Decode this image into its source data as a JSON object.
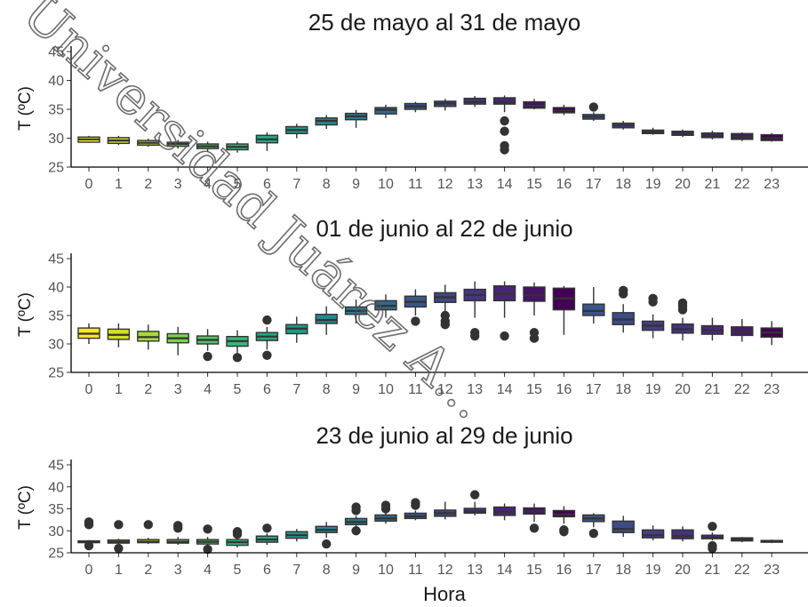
{
  "chart_data": [
    {
      "type": "box",
      "title": "25 de mayo al 31 de mayo",
      "ylabel": "T (ºC)",
      "xlabel": "",
      "ylim": [
        25,
        45
      ],
      "yticks": [
        25,
        30,
        35,
        40,
        45
      ],
      "categories": [
        "0",
        "1",
        "2",
        "3",
        "4",
        "5",
        "6",
        "7",
        "8",
        "9",
        "10",
        "11",
        "12",
        "13",
        "14",
        "15",
        "16",
        "17",
        "18",
        "19",
        "20",
        "21",
        "22",
        "23"
      ],
      "boxes": [
        {
          "min": 29.2,
          "q1": 29.3,
          "median": 29.8,
          "q3": 30.2,
          "max": 30.4,
          "outliers": []
        },
        {
          "min": 28.8,
          "q1": 29.1,
          "median": 29.6,
          "q3": 30.1,
          "max": 30.4,
          "outliers": []
        },
        {
          "min": 28.5,
          "q1": 28.8,
          "median": 29.2,
          "q3": 29.6,
          "max": 29.9,
          "outliers": []
        },
        {
          "min": 28.2,
          "q1": 28.6,
          "median": 29.0,
          "q3": 29.3,
          "max": 29.7,
          "outliers": []
        },
        {
          "min": 27.6,
          "q1": 28.2,
          "median": 28.6,
          "q3": 29.0,
          "max": 29.4,
          "outliers": []
        },
        {
          "min": 27.5,
          "q1": 28.0,
          "median": 28.5,
          "q3": 29.0,
          "max": 29.4,
          "outliers": []
        },
        {
          "min": 27.8,
          "q1": 29.2,
          "median": 29.8,
          "q3": 30.5,
          "max": 31.0,
          "outliers": []
        },
        {
          "min": 30.0,
          "q1": 30.8,
          "median": 31.4,
          "q3": 32.0,
          "max": 32.5,
          "outliers": []
        },
        {
          "min": 31.6,
          "q1": 32.3,
          "median": 33.0,
          "q3": 33.5,
          "max": 34.0,
          "outliers": []
        },
        {
          "min": 31.8,
          "q1": 33.2,
          "median": 33.8,
          "q3": 34.3,
          "max": 34.9,
          "outliers": []
        },
        {
          "min": 33.5,
          "q1": 34.2,
          "median": 34.9,
          "q3": 35.3,
          "max": 35.8,
          "outliers": []
        },
        {
          "min": 34.5,
          "q1": 35.0,
          "median": 35.5,
          "q3": 36.0,
          "max": 36.3,
          "outliers": []
        },
        {
          "min": 34.8,
          "q1": 35.5,
          "median": 36.0,
          "q3": 36.4,
          "max": 36.8,
          "outliers": []
        },
        {
          "min": 35.4,
          "q1": 35.9,
          "median": 36.3,
          "q3": 36.9,
          "max": 37.3,
          "outliers": []
        },
        {
          "min": 34.5,
          "q1": 35.9,
          "median": 36.2,
          "q3": 37.0,
          "max": 37.4,
          "outliers": [
            33.0,
            31.2,
            28.7,
            28.0
          ]
        },
        {
          "min": 35.0,
          "q1": 35.2,
          "median": 35.6,
          "q3": 36.3,
          "max": 36.8,
          "outliers": []
        },
        {
          "min": 34.0,
          "q1": 34.4,
          "median": 34.8,
          "q3": 35.3,
          "max": 35.8,
          "outliers": []
        },
        {
          "min": 33.0,
          "q1": 33.3,
          "median": 33.7,
          "q3": 34.1,
          "max": 34.5,
          "outliers": [
            35.4
          ]
        },
        {
          "min": 31.5,
          "q1": 31.8,
          "median": 32.2,
          "q3": 32.6,
          "max": 33.0,
          "outliers": []
        },
        {
          "min": 30.6,
          "q1": 30.8,
          "median": 31.1,
          "q3": 31.4,
          "max": 31.8,
          "outliers": []
        },
        {
          "min": 30.2,
          "q1": 30.5,
          "median": 30.8,
          "q3": 31.2,
          "max": 31.5,
          "outliers": []
        },
        {
          "min": 29.8,
          "q1": 30.1,
          "median": 30.4,
          "q3": 30.9,
          "max": 31.3,
          "outliers": []
        },
        {
          "min": 29.5,
          "q1": 29.8,
          "median": 30.2,
          "q3": 30.8,
          "max": 31.0,
          "outliers": []
        },
        {
          "min": 29.4,
          "q1": 29.6,
          "median": 30.0,
          "q3": 30.6,
          "max": 30.9,
          "outliers": []
        }
      ]
    },
    {
      "type": "box",
      "title": "01 de junio al 22 de junio",
      "ylabel": "T (ºC)",
      "xlabel": "",
      "ylim": [
        25,
        45
      ],
      "yticks": [
        25,
        30,
        35,
        40,
        45
      ],
      "categories": [
        "0",
        "1",
        "2",
        "3",
        "4",
        "5",
        "6",
        "7",
        "8",
        "9",
        "10",
        "11",
        "12",
        "13",
        "14",
        "15",
        "16",
        "17",
        "18",
        "19",
        "20",
        "21",
        "22",
        "23"
      ],
      "boxes": [
        {
          "min": 30.0,
          "q1": 31.0,
          "median": 31.8,
          "q3": 32.8,
          "max": 33.6,
          "outliers": []
        },
        {
          "min": 29.4,
          "q1": 30.8,
          "median": 31.6,
          "q3": 32.6,
          "max": 33.6,
          "outliers": []
        },
        {
          "min": 29.0,
          "q1": 30.5,
          "median": 31.2,
          "q3": 32.2,
          "max": 33.4,
          "outliers": []
        },
        {
          "min": 28.0,
          "q1": 30.2,
          "median": 31.0,
          "q3": 31.8,
          "max": 33.0,
          "outliers": []
        },
        {
          "min": 28.8,
          "q1": 30.0,
          "median": 30.7,
          "q3": 31.4,
          "max": 32.6,
          "outliers": [
            27.8
          ]
        },
        {
          "min": 28.4,
          "q1": 29.6,
          "median": 30.5,
          "q3": 31.3,
          "max": 32.4,
          "outliers": [
            27.6
          ]
        },
        {
          "min": 29.0,
          "q1": 30.6,
          "median": 31.3,
          "q3": 32.0,
          "max": 33.0,
          "outliers": [
            34.2,
            28.0
          ]
        },
        {
          "min": 30.2,
          "q1": 31.8,
          "median": 32.7,
          "q3": 33.4,
          "max": 34.8,
          "outliers": []
        },
        {
          "min": 31.6,
          "q1": 33.6,
          "median": 34.2,
          "q3": 35.2,
          "max": 36.6,
          "outliers": []
        },
        {
          "min": 33.6,
          "q1": 35.2,
          "median": 35.8,
          "q3": 36.5,
          "max": 37.8,
          "outliers": []
        },
        {
          "min": 34.6,
          "q1": 36.0,
          "median": 36.7,
          "q3": 37.6,
          "max": 38.7,
          "outliers": []
        },
        {
          "min": 35.0,
          "q1": 36.5,
          "median": 37.4,
          "q3": 38.4,
          "max": 39.6,
          "outliers": [
            34.0
          ]
        },
        {
          "min": 35.2,
          "q1": 37.3,
          "median": 38.2,
          "q3": 39.0,
          "max": 40.4,
          "outliers": [
            35.0,
            34.0,
            33.4
          ]
        },
        {
          "min": 34.6,
          "q1": 37.6,
          "median": 38.6,
          "q3": 39.6,
          "max": 41.0,
          "outliers": [
            32.0,
            31.4
          ]
        },
        {
          "min": 34.6,
          "q1": 37.6,
          "median": 38.8,
          "q3": 40.2,
          "max": 41.0,
          "outliers": [
            31.4
          ]
        },
        {
          "min": 35.0,
          "q1": 37.5,
          "median": 38.6,
          "q3": 40.0,
          "max": 40.8,
          "outliers": [
            32.0,
            31.0
          ]
        },
        {
          "min": 31.6,
          "q1": 36.0,
          "median": 38.0,
          "q3": 39.8,
          "max": 40.2,
          "outliers": []
        },
        {
          "min": 33.6,
          "q1": 35.0,
          "median": 35.8,
          "q3": 37.0,
          "max": 40.0,
          "outliers": []
        },
        {
          "min": 32.0,
          "q1": 33.4,
          "median": 34.3,
          "q3": 35.5,
          "max": 37.0,
          "outliers": [
            39.4,
            38.8
          ]
        },
        {
          "min": 31.0,
          "q1": 32.4,
          "median": 33.2,
          "q3": 34.0,
          "max": 35.2,
          "outliers": [
            38.0,
            37.4
          ]
        },
        {
          "min": 30.6,
          "q1": 31.9,
          "median": 32.6,
          "q3": 33.5,
          "max": 34.6,
          "outliers": [
            37.2,
            36.6,
            36.0
          ]
        },
        {
          "min": 30.6,
          "q1": 31.7,
          "median": 32.4,
          "q3": 33.2,
          "max": 34.6,
          "outliers": []
        },
        {
          "min": 30.4,
          "q1": 31.5,
          "median": 32.2,
          "q3": 33.0,
          "max": 34.4,
          "outliers": []
        },
        {
          "min": 29.8,
          "q1": 31.2,
          "median": 32.0,
          "q3": 32.8,
          "max": 34.0,
          "outliers": []
        }
      ]
    },
    {
      "type": "box",
      "title": "23 de junio al 29 de junio",
      "ylabel": "T (ºC)",
      "xlabel": "Hora",
      "ylim": [
        25,
        45
      ],
      "yticks": [
        25,
        30,
        35,
        40,
        45
      ],
      "categories": [
        "0",
        "1",
        "2",
        "3",
        "4",
        "5",
        "6",
        "7",
        "8",
        "9",
        "10",
        "11",
        "12",
        "13",
        "14",
        "15",
        "16",
        "17",
        "18",
        "19",
        "20",
        "21",
        "22",
        "23"
      ],
      "boxes": [
        {
          "min": 27.2,
          "q1": 27.3,
          "median": 27.5,
          "q3": 27.7,
          "max": 27.9,
          "outliers": [
            32.0,
            31.4,
            26.6
          ]
        },
        {
          "min": 26.8,
          "q1": 27.2,
          "median": 27.5,
          "q3": 27.9,
          "max": 28.2,
          "outliers": [
            31.4,
            26.0
          ]
        },
        {
          "min": 27.0,
          "q1": 27.3,
          "median": 27.5,
          "q3": 28.0,
          "max": 28.4,
          "outliers": [
            31.4
          ]
        },
        {
          "min": 26.8,
          "q1": 27.2,
          "median": 27.5,
          "q3": 28.0,
          "max": 28.6,
          "outliers": [
            31.2,
            30.6
          ]
        },
        {
          "min": 26.4,
          "q1": 27.0,
          "median": 27.5,
          "q3": 28.0,
          "max": 28.6,
          "outliers": [
            30.4,
            25.8
          ]
        },
        {
          "min": 26.2,
          "q1": 26.7,
          "median": 27.4,
          "q3": 28.0,
          "max": 28.6,
          "outliers": [
            29.8,
            29.2
          ]
        },
        {
          "min": 26.8,
          "q1": 27.4,
          "median": 28.0,
          "q3": 28.8,
          "max": 29.4,
          "outliers": [
            30.6
          ]
        },
        {
          "min": 27.6,
          "q1": 28.3,
          "median": 29.0,
          "q3": 29.8,
          "max": 30.4,
          "outliers": []
        },
        {
          "min": 28.4,
          "q1": 29.6,
          "median": 30.2,
          "q3": 31.0,
          "max": 32.0,
          "outliers": [
            27.0
          ]
        },
        {
          "min": 30.6,
          "q1": 31.4,
          "median": 32.0,
          "q3": 32.8,
          "max": 33.4,
          "outliers": [
            35.4,
            34.6,
            30.0
          ]
        },
        {
          "min": 31.6,
          "q1": 32.2,
          "median": 32.8,
          "q3": 33.6,
          "max": 34.8,
          "outliers": [
            35.8,
            35.0
          ]
        },
        {
          "min": 32.4,
          "q1": 32.8,
          "median": 33.3,
          "q3": 34.0,
          "max": 34.6,
          "outliers": [
            36.4,
            35.8
          ]
        },
        {
          "min": 32.6,
          "q1": 33.3,
          "median": 34.0,
          "q3": 34.7,
          "max": 36.6,
          "outliers": []
        },
        {
          "min": 33.5,
          "q1": 34.0,
          "median": 34.4,
          "q3": 35.1,
          "max": 36.6,
          "outliers": [
            38.2
          ]
        },
        {
          "min": 32.4,
          "q1": 33.5,
          "median": 34.3,
          "q3": 35.4,
          "max": 36.2,
          "outliers": []
        },
        {
          "min": 32.0,
          "q1": 33.8,
          "median": 34.4,
          "q3": 35.2,
          "max": 36.2,
          "outliers": [
            30.6
          ]
        },
        {
          "min": 31.6,
          "q1": 33.2,
          "median": 33.7,
          "q3": 34.6,
          "max": 35.6,
          "outliers": [
            30.2,
            29.8
          ]
        },
        {
          "min": 30.8,
          "q1": 32.1,
          "median": 32.8,
          "q3": 33.6,
          "max": 34.0,
          "outliers": [
            29.4
          ]
        },
        {
          "min": 28.6,
          "q1": 29.6,
          "median": 30.4,
          "q3": 32.2,
          "max": 33.4,
          "outliers": []
        },
        {
          "min": 27.8,
          "q1": 28.4,
          "median": 29.0,
          "q3": 30.2,
          "max": 31.2,
          "outliers": []
        },
        {
          "min": 27.6,
          "q1": 28.2,
          "median": 28.8,
          "q3": 30.2,
          "max": 31.0,
          "outliers": []
        },
        {
          "min": 27.8,
          "q1": 28.2,
          "median": 28.4,
          "q3": 29.0,
          "max": 29.6,
          "outliers": [
            31.0,
            26.6,
            26.0
          ]
        },
        {
          "min": 27.4,
          "q1": 27.7,
          "median": 28.0,
          "q3": 28.4,
          "max": 28.6,
          "outliers": []
        },
        {
          "min": 27.2,
          "q1": 27.4,
          "median": 27.6,
          "q3": 27.8,
          "max": 28.0,
          "outliers": []
        }
      ]
    }
  ],
  "colors": {
    "hour_fill": [
      "#fde725",
      "#d2e21b",
      "#a5db36",
      "#7ad151",
      "#54c568",
      "#35b779",
      "#22a884",
      "#1f988b",
      "#23888e",
      "#2a788e",
      "#31688e",
      "#39568c",
      "#3f4788",
      "#453581",
      "#482576",
      "#471164",
      "#440154",
      "#39568c",
      "#3e4a89",
      "#433e85",
      "#46337e",
      "#482878",
      "#481a6c",
      "#440154"
    ],
    "box_line": "#333333",
    "axis": "#000000",
    "tick_text": "#555555"
  },
  "watermark": "Universidad Juárez A..."
}
